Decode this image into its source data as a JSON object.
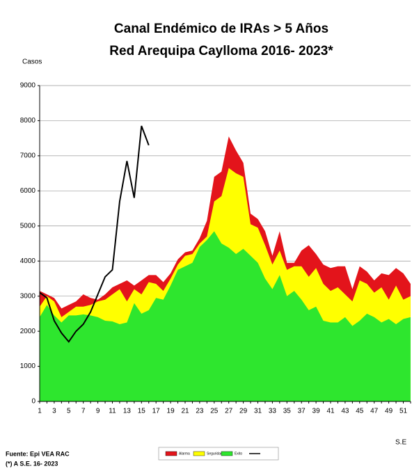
{
  "chart_data": {
    "type": "area",
    "title": "Canal Endémico de IRAs > 5 Años",
    "subtitle": "Red Arequipa Caylloma 2016- 2023*",
    "y_label": "Casos",
    "x_label": "S.E",
    "source": "Fuente: Epi VEA RAC",
    "note": "(*) A S.E. 16- 2023",
    "categories": [
      "1",
      null,
      "3",
      null,
      "5",
      null,
      "7",
      null,
      "9",
      null,
      "11",
      null,
      "13",
      null,
      "15",
      null,
      "17",
      null,
      "19",
      null,
      "21",
      null,
      "23",
      null,
      "25",
      null,
      "27",
      null,
      "29",
      null,
      "31",
      null,
      "33",
      null,
      "35",
      null,
      "37",
      null,
      "39",
      null,
      "41",
      null,
      "43",
      null,
      "45",
      null,
      "47",
      null,
      "49",
      null,
      "51",
      null
    ],
    "ylim": [
      0,
      9000
    ],
    "yticks": [
      0,
      1000,
      2000,
      3000,
      4000,
      5000,
      6000,
      7000,
      8000,
      9000
    ],
    "grid": true,
    "series": [
      {
        "name": "Alarma",
        "color": "#e3141b",
        "values": [
          3150,
          3050,
          2950,
          2650,
          2750,
          2850,
          3050,
          2950,
          2900,
          3050,
          3250,
          3350,
          3450,
          3300,
          3450,
          3600,
          3600,
          3400,
          3650,
          4050,
          4250,
          4300,
          4650,
          5150,
          6400,
          6550,
          7550,
          7150,
          6800,
          5350,
          5200,
          4850,
          4150,
          4850,
          3950,
          3950,
          4300,
          4450,
          4200,
          3900,
          3800,
          3850,
          3850,
          3200,
          3850,
          3700,
          3450,
          3650,
          3600,
          3800,
          3650,
          3350
        ]
      },
      {
        "name": "Seguridad",
        "color": "#ffff00",
        "values": [
          2700,
          3000,
          2850,
          2400,
          2550,
          2700,
          2700,
          2750,
          2850,
          2900,
          3050,
          3200,
          2850,
          3200,
          3050,
          3400,
          3350,
          3150,
          3500,
          3900,
          4150,
          4200,
          4500,
          4700,
          5700,
          5850,
          6650,
          6500,
          6400,
          5050,
          4950,
          4450,
          3900,
          4300,
          3750,
          3850,
          3850,
          3550,
          3800,
          3350,
          3150,
          3250,
          3050,
          2850,
          3450,
          3350,
          3100,
          3250,
          2900,
          3300,
          2900,
          3000
        ]
      },
      {
        "name": "Exito",
        "color": "#2ee62e",
        "values": [
          2400,
          2750,
          2450,
          2250,
          2450,
          2450,
          2480,
          2450,
          2400,
          2300,
          2280,
          2200,
          2250,
          2800,
          2500,
          2600,
          2950,
          2900,
          3300,
          3750,
          3850,
          3950,
          4400,
          4600,
          4850,
          4500,
          4380,
          4200,
          4350,
          4150,
          3950,
          3500,
          3200,
          3600,
          3000,
          3150,
          2900,
          2600,
          2700,
          2300,
          2250,
          2250,
          2400,
          2150,
          2300,
          2500,
          2400,
          2250,
          2350,
          2200,
          2350,
          2400
        ]
      },
      {
        "type": "line",
        "color": "#000000",
        "values": [
          3100,
          2950,
          2300,
          1950,
          1700,
          2000,
          2200,
          2550,
          3050,
          3550,
          3750,
          5700,
          6850,
          5800,
          7850,
          7300,
          null,
          null,
          null,
          null,
          null,
          null,
          null,
          null,
          null,
          null,
          null,
          null,
          null,
          null,
          null,
          null,
          null,
          null,
          null,
          null,
          null,
          null,
          null,
          null,
          null,
          null,
          null,
          null,
          null,
          null,
          null,
          null,
          null,
          null,
          null,
          null
        ]
      }
    ]
  }
}
